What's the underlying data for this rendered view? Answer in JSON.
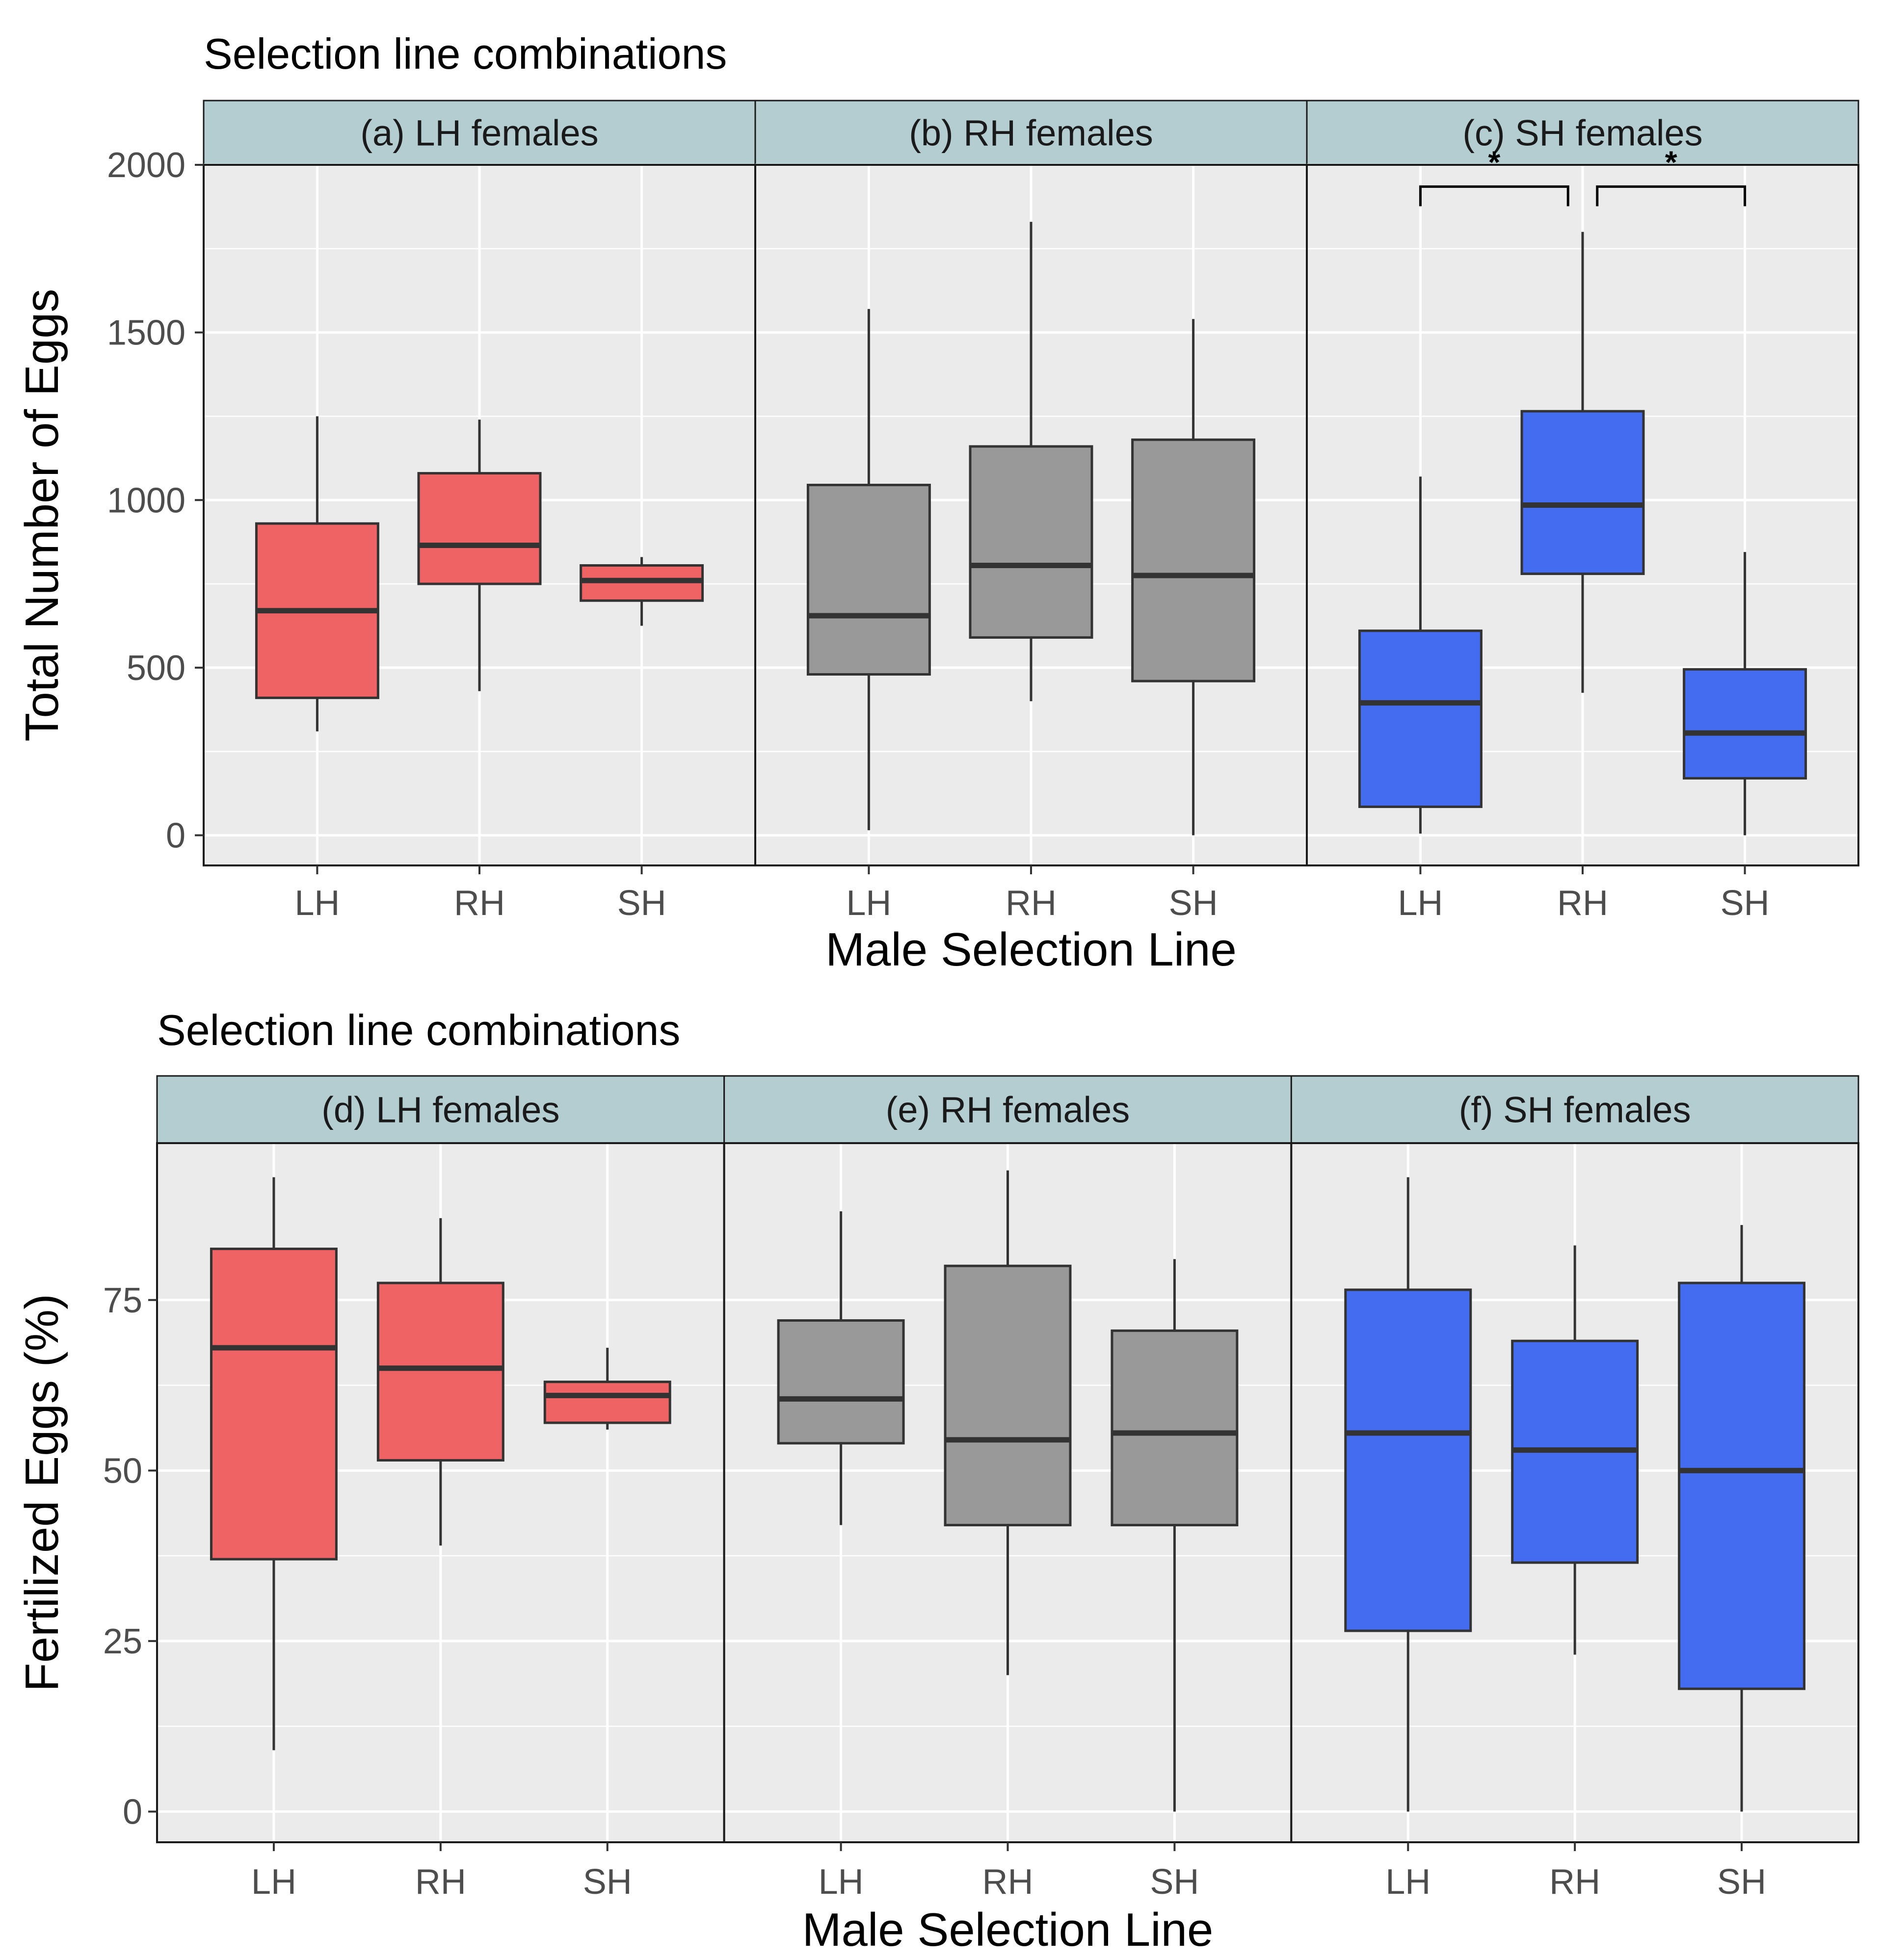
{
  "chart_data": [
    {
      "type": "boxplot",
      "title": "Selection line combinations",
      "xlabel": "Male Selection Line",
      "ylabel": "Total Number of Eggs",
      "ylim": [
        -90,
        2000
      ],
      "yticks": [
        0,
        500,
        1000,
        1500,
        2000
      ],
      "categories": [
        "LH",
        "RH",
        "SH"
      ],
      "panels": [
        {
          "label": "(a) LH females",
          "color": "#EF6364",
          "boxes": [
            {
              "category": "LH",
              "min": 310,
              "q1": 410,
              "median": 670,
              "q3": 930,
              "max": 1250
            },
            {
              "category": "RH",
              "min": 430,
              "q1": 750,
              "median": 865,
              "q3": 1080,
              "max": 1240
            },
            {
              "category": "SH",
              "min": 625,
              "q1": 700,
              "median": 760,
              "q3": 805,
              "max": 830
            }
          ],
          "significance": []
        },
        {
          "label": "(b) RH females",
          "color": "#999999",
          "boxes": [
            {
              "category": "LH",
              "min": 15,
              "q1": 480,
              "median": 655,
              "q3": 1045,
              "max": 1570
            },
            {
              "category": "RH",
              "min": 400,
              "q1": 590,
              "median": 805,
              "q3": 1160,
              "max": 1830
            },
            {
              "category": "SH",
              "min": 0,
              "q1": 460,
              "median": 775,
              "q3": 1180,
              "max": 1540
            }
          ],
          "significance": []
        },
        {
          "label": "(c) SH females",
          "color": "#446CF0",
          "boxes": [
            {
              "category": "LH",
              "min": 5,
              "q1": 85,
              "median": 395,
              "q3": 610,
              "max": 1070
            },
            {
              "category": "RH",
              "min": 425,
              "q1": 780,
              "median": 985,
              "q3": 1265,
              "max": 1800
            },
            {
              "category": "SH",
              "min": 0,
              "q1": 170,
              "median": 305,
              "q3": 495,
              "max": 845
            }
          ],
          "significance": [
            {
              "from": "LH",
              "to": "RH",
              "label": "*",
              "y": 1935
            },
            {
              "from": "RH",
              "to": "SH",
              "label": "*",
              "y": 1935
            }
          ]
        }
      ]
    },
    {
      "type": "boxplot",
      "title": "Selection line combinations",
      "xlabel": "Male Selection Line",
      "ylabel": "Fertilized Eggs (%)",
      "ylim": [
        -4.5,
        98
      ],
      "yticks": [
        0,
        25,
        50,
        75
      ],
      "categories": [
        "LH",
        "RH",
        "SH"
      ],
      "panels": [
        {
          "label": "(d) LH females",
          "color": "#EF6364",
          "boxes": [
            {
              "category": "LH",
              "min": 9,
              "q1": 37,
              "median": 68,
              "q3": 82.5,
              "max": 93
            },
            {
              "category": "RH",
              "min": 39,
              "q1": 51.5,
              "median": 65,
              "q3": 77.5,
              "max": 87
            },
            {
              "category": "SH",
              "min": 56,
              "q1": 57,
              "median": 61,
              "q3": 63,
              "max": 68
            }
          ],
          "significance": []
        },
        {
          "label": "(e) RH females",
          "color": "#999999",
          "boxes": [
            {
              "category": "LH",
              "min": 42,
              "q1": 54,
              "median": 60.5,
              "q3": 72,
              "max": 88
            },
            {
              "category": "RH",
              "min": 20,
              "q1": 42,
              "median": 54.5,
              "q3": 80,
              "max": 94
            },
            {
              "category": "SH",
              "min": 0,
              "q1": 42,
              "median": 55.5,
              "q3": 70.5,
              "max": 81
            }
          ],
          "significance": []
        },
        {
          "label": "(f) SH females",
          "color": "#446CF0",
          "boxes": [
            {
              "category": "LH",
              "min": 0,
              "q1": 26.5,
              "median": 55.5,
              "q3": 76.5,
              "max": 93
            },
            {
              "category": "RH",
              "min": 23,
              "q1": 36.5,
              "median": 53,
              "q3": 69,
              "max": 83
            },
            {
              "category": "SH",
              "min": 0,
              "q1": 18,
              "median": 50,
              "q3": 77.5,
              "max": 86
            }
          ],
          "significance": []
        }
      ]
    }
  ]
}
